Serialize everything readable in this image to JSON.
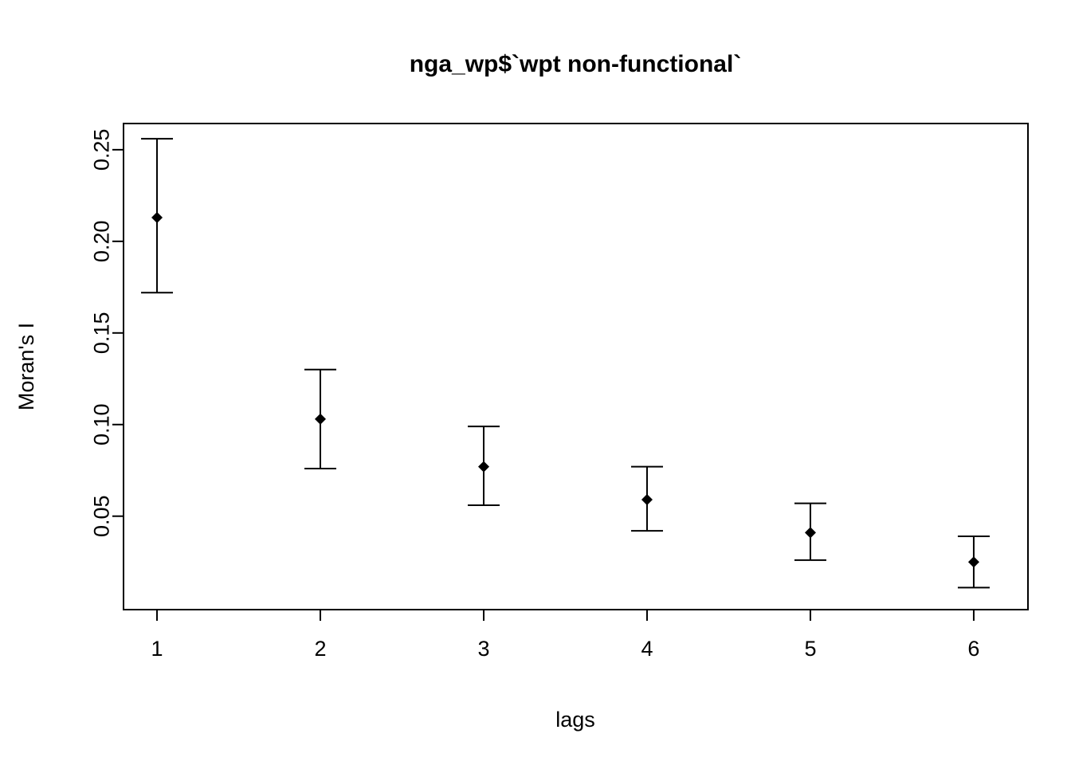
{
  "chart_data": {
    "type": "scatter",
    "subtype": "errorbar-correlogram",
    "title": "nga_wp$`wpt non-functional`",
    "xlabel": "lags",
    "ylabel": "Moran's  I",
    "x": [
      1,
      2,
      3,
      4,
      5,
      6
    ],
    "series": [
      {
        "name": "Moran's I estimate",
        "values": [
          0.213,
          0.103,
          0.077,
          0.059,
          0.041,
          0.025
        ],
        "lower": [
          0.172,
          0.076,
          0.056,
          0.042,
          0.026,
          0.011
        ],
        "upper": [
          0.256,
          0.13,
          0.099,
          0.077,
          0.057,
          0.039
        ]
      }
    ],
    "xticks": [
      1,
      2,
      3,
      4,
      5,
      6
    ],
    "xtick_labels": [
      "1",
      "2",
      "3",
      "4",
      "5",
      "6"
    ],
    "yticks": [
      0.05,
      0.1,
      0.15,
      0.2,
      0.25
    ],
    "ytick_labels": [
      "0.05",
      "0.10",
      "0.15",
      "0.20",
      "0.25"
    ],
    "xlim": [
      0.795,
      6.332
    ],
    "ylim": [
      -0.001,
      0.2643
    ],
    "grid": false,
    "legend": "none",
    "point_shape": "filled-diamond",
    "color": "#000000",
    "background": "#ffffff"
  }
}
